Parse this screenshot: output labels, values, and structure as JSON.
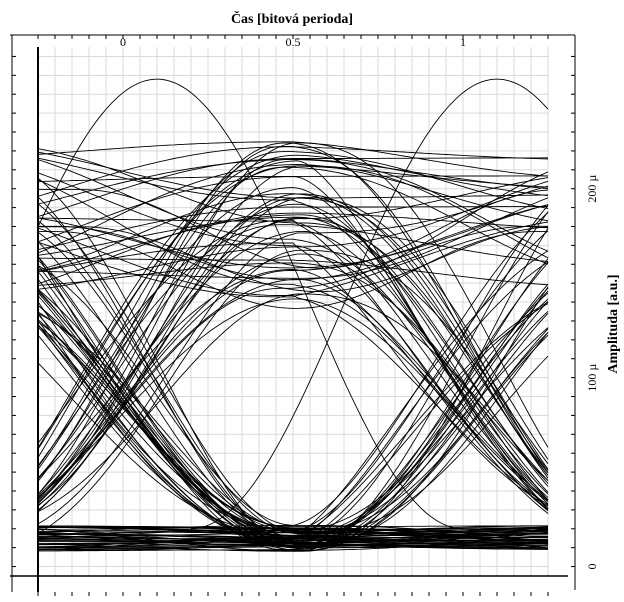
{
  "chart_data": {
    "type": "line",
    "subtype": "eye-diagram",
    "xlabel": "Čas [bitová perioda]",
    "ylabel": "Amplituda [a.u.]",
    "x_axis_position": "top",
    "y_axis_position": "right",
    "x_ticks": [
      {
        "value": 0,
        "label": "0"
      },
      {
        "value": 0.5,
        "label": "0.5"
      },
      {
        "value": 1,
        "label": "1"
      }
    ],
    "y_ticks": [
      {
        "value": 0,
        "label": "0"
      },
      {
        "value": 100,
        "label": "100 µ"
      },
      {
        "value": 200,
        "label": "200 µ"
      }
    ],
    "xlim": [
      -0.25,
      1.25
    ],
    "ylim": [
      -5,
      275
    ],
    "grid": true,
    "grid_major_x": 0.05,
    "grid_major_y": 10,
    "series_color": "#000000",
    "traces": {
      "description_free": true,
      "levels": {
        "high_band": [
          140,
          225
        ],
        "low_band": [
          8,
          22
        ],
        "peak_isolated": 258
      },
      "transitions": {
        "rising_center_x": 0.175,
        "falling_center_x": 0.825,
        "crossing_level_y": 95
      }
    }
  }
}
